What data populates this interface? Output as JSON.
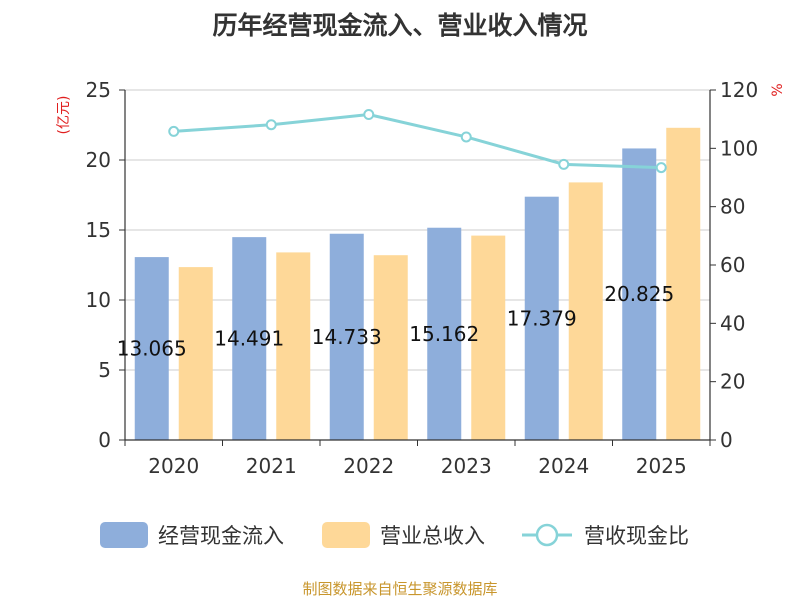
{
  "chart_data": {
    "type": "bar",
    "title": "历年经营现金流入、营业收入情况",
    "categories": [
      "2020",
      "2021",
      "2022",
      "2023",
      "2024",
      "2025"
    ],
    "series": [
      {
        "name": "经营现金流入",
        "type": "bar",
        "axis": "left",
        "color": "#8eaedb",
        "values": [
          13.065,
          14.491,
          14.733,
          15.162,
          17.379,
          20.825
        ],
        "labels": [
          "13.065",
          "14.491",
          "14.733",
          "15.162",
          "17.379",
          "20.825"
        ]
      },
      {
        "name": "营业总收入",
        "type": "bar",
        "axis": "left",
        "color": "#fed898",
        "values": [
          12.35,
          13.4,
          13.2,
          14.6,
          18.4,
          22.3
        ]
      },
      {
        "name": "营收现金比",
        "type": "line",
        "axis": "right",
        "color": "#86d3d8",
        "values": [
          105.8,
          108.1,
          111.6,
          103.9,
          94.5,
          93.4
        ]
      }
    ],
    "y_left": {
      "label": "(亿元)",
      "range": [
        0,
        25
      ],
      "ticks": [
        0,
        5,
        10,
        15,
        20,
        25
      ]
    },
    "y_right": {
      "label": "%",
      "range": [
        0,
        120
      ],
      "ticks": [
        0,
        20,
        40,
        60,
        80,
        100,
        120
      ]
    },
    "grid": true,
    "legend_position": "bottom"
  },
  "source_text": "制图数据来自恒生聚源数据库"
}
